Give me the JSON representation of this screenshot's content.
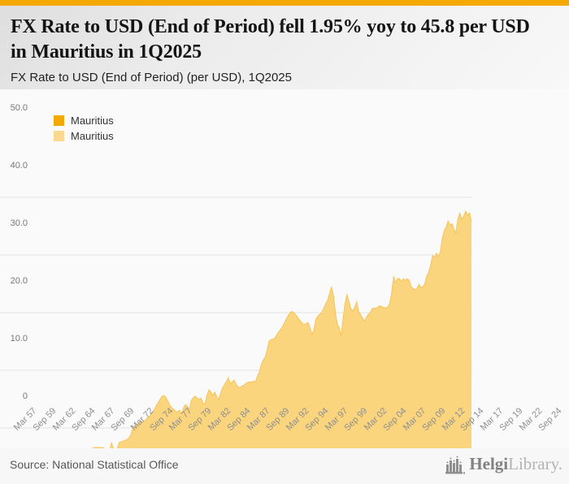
{
  "header": {
    "title": "FX Rate to USD (End of Period) fell 1.95% yoy to 45.8 per USD in Mauritius in 1Q2025",
    "subtitle": "FX Rate to USD (End of Period) (per USD), 1Q2025"
  },
  "legend": [
    {
      "label": "Mauritius",
      "color": "#F2A900"
    },
    {
      "label": "Mauritius",
      "color": "#F8D98F"
    }
  ],
  "footer": {
    "source": "Source: National Statistical Office",
    "logo_primary": "Helgi",
    "logo_secondary": "Library."
  },
  "colors": {
    "accent_orange": "#F5A800",
    "area_fill": "#FAD57E",
    "area_line": "#F5C45A",
    "gridline": "#E3E3E3",
    "tick_stripe": "#C7CEE6",
    "y_label": "#767676",
    "x_label": "#8E8E8E"
  },
  "chart_data": {
    "type": "area",
    "title": "FX Rate to USD (End of Period) (per USD), 1Q2025",
    "series_name": "Mauritius",
    "unit": "MUR per USD",
    "frequency": "quarterly",
    "first_period": "Mar 1957",
    "last_period": "Mar 2025",
    "latest_value": 45.8,
    "yoy_change_pct": -1.95,
    "ylim": [
      0,
      50
    ],
    "y_ticks": [
      0,
      10,
      20,
      30,
      40,
      50
    ],
    "y_tick_labels": [
      "0",
      "10.0",
      "20.0",
      "30.0",
      "40.0",
      "50.0"
    ],
    "x_tick_every_n_points": 10,
    "x_tick_labels": [
      "Mar 57",
      "Sep 59",
      "Mar 62",
      "Sep 64",
      "Mar 67",
      "Sep 69",
      "Mar 72",
      "Sep 74",
      "Mar 77",
      "Sep 79",
      "Mar 82",
      "Sep 84",
      "Mar 87",
      "Sep 89",
      "Mar 92",
      "Sep 94",
      "Mar 97",
      "Sep 99",
      "Mar 02",
      "Sep 04",
      "Mar 07",
      "Sep 09",
      "Mar 12",
      "Sep 14",
      "Mar 17",
      "Sep 19",
      "Mar 22",
      "Sep 24"
    ],
    "values": [
      4.76,
      4.76,
      4.76,
      4.76,
      4.76,
      4.76,
      4.76,
      4.76,
      4.76,
      4.76,
      4.76,
      4.76,
      4.76,
      4.76,
      4.76,
      4.76,
      4.76,
      4.76,
      4.76,
      4.76,
      4.76,
      4.76,
      4.76,
      4.76,
      4.76,
      4.76,
      4.76,
      4.76,
      4.76,
      4.76,
      4.76,
      4.76,
      4.76,
      4.76,
      4.76,
      4.76,
      4.76,
      4.76,
      4.76,
      4.76,
      4.76,
      4.76,
      4.76,
      5.55,
      5.55,
      5.55,
      5.55,
      5.55,
      5.55,
      5.55,
      5.55,
      5.55,
      5.55,
      5.55,
      5.55,
      5.55,
      5.55,
      5.55,
      5.55,
      5.44,
      5.34,
      5.3,
      5.33,
      5.38,
      5.25,
      5.44,
      5.5,
      5.42,
      5.55,
      5.6,
      5.65,
      5.6,
      5.45,
      5.85,
      6.1,
      5.97,
      6.25,
      6.45,
      6.55,
      6.65,
      6.6,
      6.55,
      6.62,
      6.55,
      6.2,
      6.1,
      6.05,
      7.4,
      6.4,
      6.0,
      6.5,
      7.5,
      7.6,
      7.7,
      7.85,
      8.0,
      8.3,
      8.9,
      10.0,
      10.3,
      10.6,
      10.9,
      11.1,
      10.95,
      11.2,
      11.6,
      11.9,
      12.2,
      12.7,
      13.2,
      13.9,
      14.4,
      15.0,
      15.5,
      15.6,
      15.3,
      14.6,
      13.9,
      13.5,
      13.2,
      12.9,
      12.75,
      13.1,
      12.45,
      13.5,
      14.05,
      13.7,
      13.1,
      14.8,
      15.25,
      15.5,
      15.2,
      15.0,
      15.2,
      14.3,
      14.2,
      15.6,
      16.6,
      16.3,
      15.6,
      16.2,
      15.5,
      14.9,
      16.0,
      16.9,
      17.5,
      18.0,
      18.7,
      17.7,
      18.0,
      18.3,
      17.6,
      17.1,
      17.0,
      17.3,
      17.4,
      17.7,
      17.9,
      18.0,
      18.0,
      18.1,
      18.0,
      19.0,
      19.7,
      21.0,
      21.8,
      22.3,
      23.5,
      25.1,
      25.3,
      25.4,
      25.6,
      26.2,
      26.7,
      27.1,
      27.7,
      28.3,
      29.0,
      29.6,
      30.1,
      30.2,
      29.9,
      29.5,
      29.0,
      28.6,
      28.2,
      27.9,
      28.1,
      28.3,
      27.4,
      26.2,
      27.0,
      28.8,
      29.4,
      29.7,
      30.0,
      30.7,
      31.5,
      32.1,
      33.2,
      34.5,
      33.1,
      30.2,
      28.0,
      27.4,
      26.0,
      29.0,
      31.5,
      33.1,
      32.0,
      30.7,
      30.3,
      30.9,
      31.9,
      30.2,
      29.7,
      29.0,
      28.6,
      29.2,
      29.7,
      30.0,
      30.7,
      30.8,
      30.7,
      31.0,
      31.2,
      31.0,
      30.9,
      30.8,
      31.0,
      31.6,
      33.5,
      36.3,
      35.2,
      35.9,
      35.9,
      35.4,
      35.9,
      35.6,
      35.9,
      35.6,
      34.5,
      34.2,
      34.0,
      34.2,
      34.9,
      34.4,
      34.5,
      35.0,
      36.3,
      37.0,
      38.2,
      39.9,
      39.6,
      40.3,
      39.8,
      40.5,
      42.9,
      44.2,
      44.8,
      45.9,
      45.2,
      45.4,
      44.5,
      43.8,
      46.2,
      47.3,
      46.2,
      46.7,
      47.6,
      46.9,
      47.3,
      45.8
    ]
  }
}
